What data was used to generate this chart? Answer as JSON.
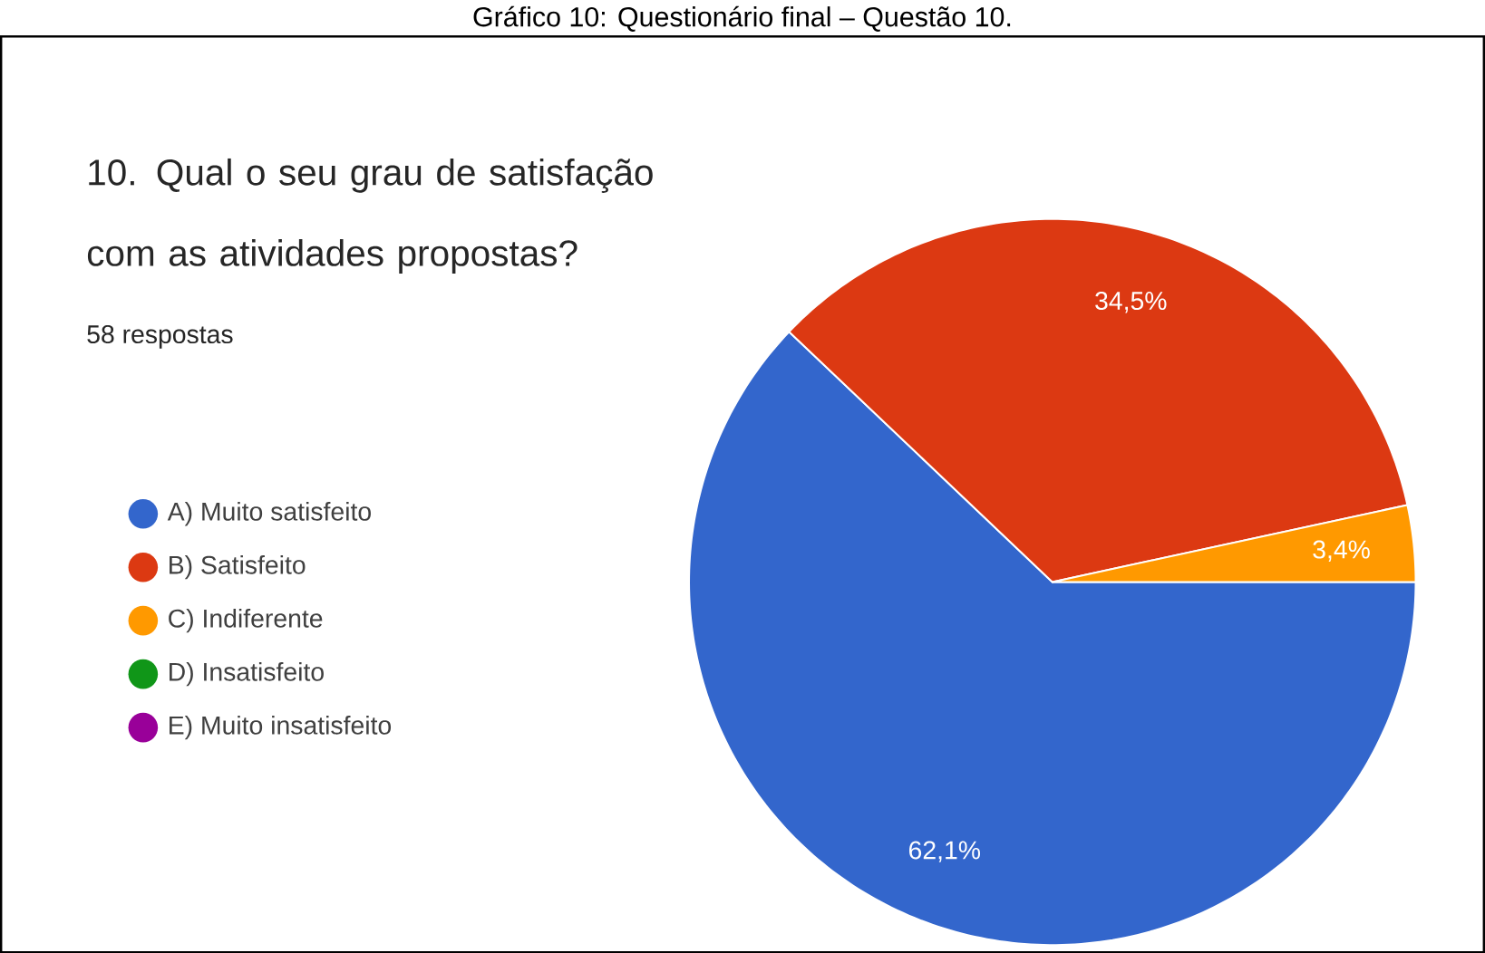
{
  "chart_data": {
    "type": "pie",
    "title": "10. Qual o seu grau de satisfação com as atividades propostas?",
    "subtitle": "58 respostas",
    "annotations": [
      "Gráfico 10: Questionário final – Questão 10."
    ],
    "categories": [
      "A) Muito satisfeito",
      "B) Satisfeito",
      "C) Indiferente",
      "D) Insatisfeito",
      "E) Muito insatisfeito"
    ],
    "values": [
      62.1,
      34.5,
      3.4,
      0,
      0
    ],
    "value_labels": [
      "62,1%",
      "34,5%",
      "3,4%",
      null,
      null
    ],
    "colors": [
      "#3366cc",
      "#dc3912",
      "#ff9900",
      "#109618",
      "#990099"
    ],
    "legend": "left"
  }
}
